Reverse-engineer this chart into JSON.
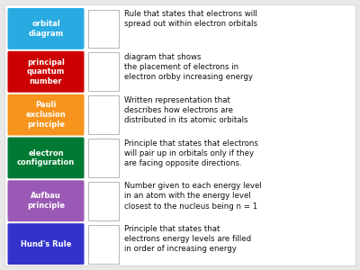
{
  "background_color": "#ffffff",
  "outer_bg": "#e8e8e8",
  "terms": [
    {
      "label": "orbital\ndiagram",
      "color": "#29ABE2"
    },
    {
      "label": "principal\nquantum\nnumber",
      "color": "#CC0000"
    },
    {
      "label": "Pauli\nexclusion\nprinciple",
      "color": "#F7941D"
    },
    {
      "label": "electron\nconfiguration",
      "color": "#007A33"
    },
    {
      "label": "Aufbau\nprinciple",
      "color": "#9B59B6"
    },
    {
      "label": "Hund's Rule",
      "color": "#3333CC"
    }
  ],
  "definitions": [
    "Rule that states that electrons will\nspread out within electron orbitals",
    "diagram that shows\nthe placement of electrons in\nelectron orbby increasing energy",
    "Written representation that\ndescribes how electrons are\ndistributed in its atomic orbitals",
    "Principle that states that electrons\nwill pair up in orbitals only if they\nare facing opposite directions.",
    "Number given to each energy level\nin an atom with the energy level\nclosest to the nucleus being n = 1",
    "Principle that states that\nelectrons energy levels are filled\nin order of increasing energy"
  ],
  "term_font_size": 6.0,
  "def_font_size": 6.2
}
